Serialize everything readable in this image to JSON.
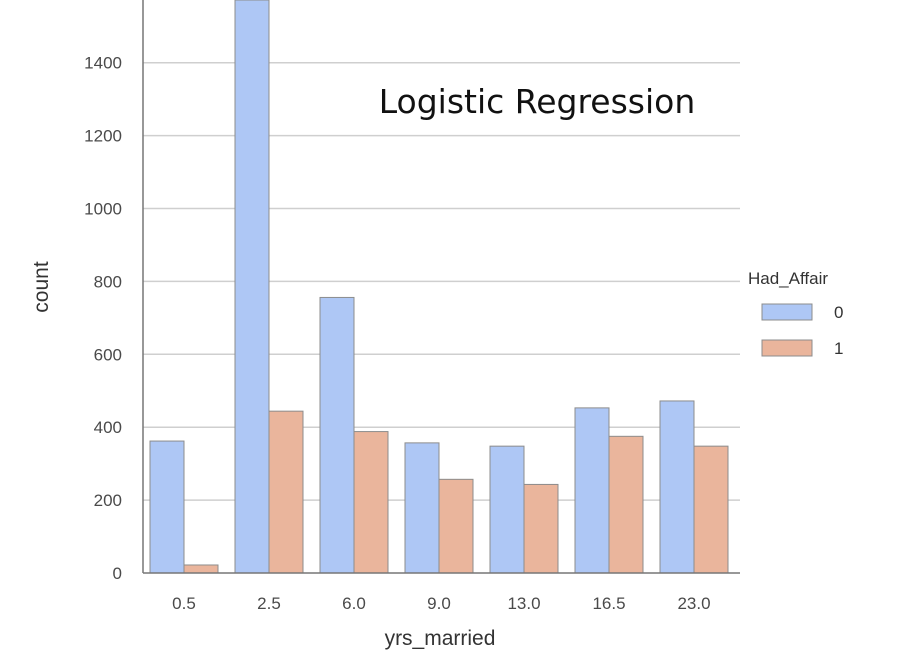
{
  "chart_data": {
    "type": "bar",
    "title": "Logistic Regression",
    "xlabel": "yrs_married",
    "ylabel": "count",
    "categories": [
      "0.5",
      "2.5",
      "6.0",
      "9.0",
      "13.0",
      "16.5",
      "23.0"
    ],
    "series": [
      {
        "name": "0",
        "color": "#aec7f5",
        "values": [
          362,
          1590,
          756,
          357,
          348,
          453,
          472
        ]
      },
      {
        "name": "1",
        "color": "#eab59c",
        "values": [
          22,
          444,
          388,
          257,
          243,
          375,
          348
        ]
      }
    ],
    "yticks": [
      0,
      200,
      400,
      600,
      800,
      1000,
      1200,
      1400
    ],
    "ylim": [
      0,
      1600
    ],
    "grid": true,
    "legend": {
      "title": "Had_Affair",
      "position": "right"
    }
  }
}
